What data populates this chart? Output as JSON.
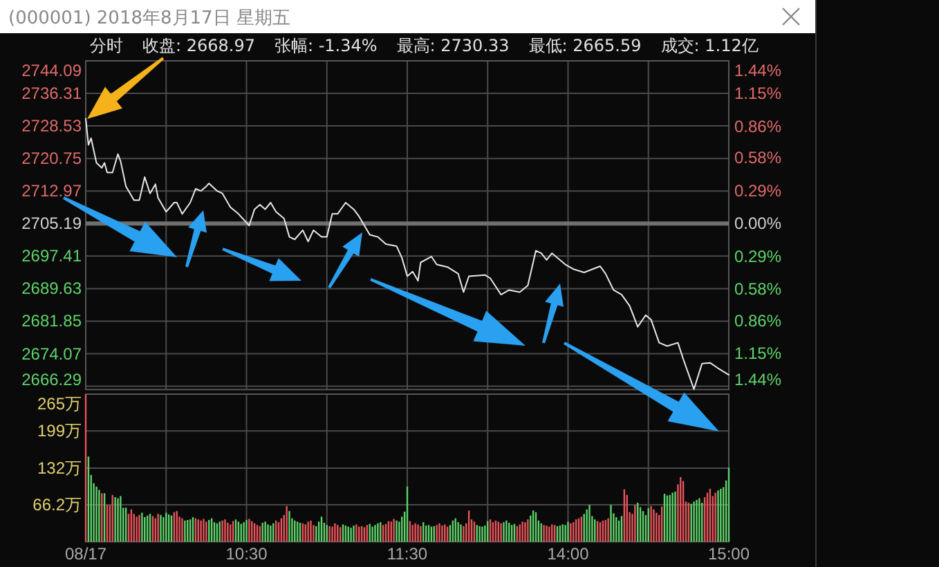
{
  "chart_data": [
    {
      "type": "line",
      "title": "(000001) 2018年8月17日 星期五",
      "annotations": [
        "分时",
        "收盘: 2668.97",
        "张幅: -1.34%",
        "最高: 2730.33",
        "最低: 2665.59",
        "成交: 1.12亿"
      ],
      "series": [
        {
          "color": "#e8e8e8",
          "values": [
            2730.3,
            2724.0,
            2725.6,
            null,
            2719.7,
            null,
            2718.5,
            2719.7,
            2717.4,
            null,
            2717.4,
            null,
            2721.8,
            2720.1,
            null,
            2714.1,
            null,
            null,
            2710.8,
            null,
            2710.8,
            null,
            2716.3,
            null,
            2712.4,
            null,
            2714.6,
            2711.3,
            null,
            null,
            2708.0,
            null,
            null,
            2710.2,
            2710.2,
            null,
            2707.5,
            null,
            null,
            2710.2,
            null,
            2713.5,
            null,
            2713.0,
            null,
            2714.1,
            2714.8,
            null,
            null,
            2713.0,
            null,
            2712.4,
            null,
            null,
            2709.1,
            null,
            null,
            2707.5,
            null,
            null,
            null,
            2704.7,
            null,
            2708.6,
            null,
            2709.7,
            null,
            2708.6,
            null,
            2710.2,
            null,
            2708.0,
            null,
            null,
            2706.4,
            null,
            2702.0,
            null,
            2701.4,
            null,
            null,
            2703.6,
            null,
            2700.9,
            null,
            2703.6,
            null,
            null,
            2702.0,
            null,
            2702.0,
            null,
            2707.5,
            null,
            2707.5,
            null,
            null,
            2710.2,
            null,
            null,
            2708.6,
            null,
            2706.9,
            null,
            null,
            null,
            2702.5,
            null,
            null,
            2702.0,
            null,
            null,
            2700.3,
            null,
            null,
            null,
            2699.8,
            null,
            2697.0,
            null,
            2692.6,
            null,
            2693.7,
            null,
            2691.5,
            2695.9,
            null,
            null,
            null,
            2697.3,
            null,
            2695.4,
            null,
            null,
            null,
            2694.8,
            null,
            null,
            null,
            2693.2,
            null,
            2688.8,
            null,
            2692.6,
            null,
            null,
            null,
            null,
            null,
            2692.9,
            null,
            2692.1,
            null,
            null,
            null,
            2688.2,
            null,
            null,
            2689.3,
            null,
            null,
            null,
            2688.8,
            null,
            null,
            2690.4,
            null,
            null,
            2698.7,
            null,
            2698.1,
            null,
            2696.5,
            null,
            2698.1,
            null,
            null,
            null,
            null,
            2695.4,
            null,
            null,
            2694.3,
            null,
            null,
            null,
            2693.5,
            null,
            null,
            null,
            null,
            null,
            2695.0,
            null,
            2693.2,
            null,
            null,
            2689.3,
            null,
            null,
            2688.2,
            null,
            null,
            2685.5,
            null,
            null,
            2680.5,
            null,
            null,
            2683.3,
            null,
            2682.2,
            null,
            null,
            2676.7,
            null,
            null,
            2675.9,
            null,
            null,
            null,
            2676.7,
            null,
            2672.8,
            null,
            null,
            null,
            2665.6,
            null,
            null,
            2671.7,
            null,
            null,
            2671.9,
            null,
            null,
            2670.6,
            null,
            null,
            null,
            2669.0
          ]
        }
      ],
      "categories": [
        null,
        null,
        null,
        null,
        null,
        null,
        null,
        null,
        null,
        null,
        null,
        null,
        null,
        null,
        null,
        null,
        null,
        null,
        null,
        null,
        null,
        null,
        null,
        null,
        null,
        null,
        null,
        null,
        null,
        null,
        null,
        null,
        null,
        null,
        null,
        null,
        null,
        null,
        null,
        null,
        null,
        null,
        null,
        null,
        null,
        null,
        null,
        null,
        null,
        null,
        null,
        null,
        null,
        null,
        null,
        null,
        null,
        null,
        null,
        null,
        null,
        null,
        null,
        null,
        null,
        null,
        null,
        null,
        null,
        null,
        null,
        null,
        null,
        null,
        null,
        null,
        null,
        null,
        null,
        null,
        null,
        null,
        null,
        null,
        null,
        null,
        null,
        null,
        null,
        null,
        null,
        null,
        null,
        null,
        null,
        null,
        null,
        null,
        null,
        null,
        null,
        null,
        null,
        null,
        null,
        null,
        null,
        null,
        null,
        null,
        null,
        null,
        null,
        null,
        null,
        null,
        null,
        null,
        null,
        null,
        null,
        null,
        null,
        null,
        null,
        null,
        null,
        null,
        null,
        null,
        null,
        null,
        null,
        null,
        null,
        null,
        null,
        null,
        null,
        null,
        null,
        null,
        null,
        null,
        null,
        null,
        null,
        null,
        null,
        null,
        null,
        null,
        null,
        null,
        null,
        null,
        null,
        null,
        null,
        null,
        null,
        null,
        null,
        null,
        null,
        null,
        null,
        null,
        null,
        null,
        null,
        null,
        null,
        null,
        null,
        null,
        null,
        null,
        null,
        null,
        null,
        null,
        null,
        null,
        null,
        null,
        null,
        null,
        null,
        null,
        null,
        null,
        null,
        null,
        null,
        null,
        null,
        null,
        null,
        null,
        null,
        null,
        null,
        null,
        null,
        null,
        null,
        null,
        null,
        null,
        null,
        null,
        null,
        null,
        null,
        null,
        null,
        null,
        null,
        null,
        null,
        null,
        null,
        null,
        null,
        null,
        null,
        null,
        null,
        null,
        null,
        null,
        null,
        null,
        null,
        null,
        null,
        null,
        null,
        null,
        null
      ],
      "ylim": [
        2665.5,
        2744.09
      ],
      "yticks": [
        2744.09,
        2736.31,
        2728.53,
        2720.75,
        2712.97,
        2705.19,
        2697.41,
        2689.63,
        2681.85,
        2674.07,
        2666.29
      ],
      "y2lim": [
        -1.47,
        1.44
      ],
      "y2ticks": [
        {
          "value": 1.44,
          "label": "1.44%"
        },
        {
          "value": 1.15,
          "label": "1.15%"
        },
        {
          "value": 0.86,
          "label": "0.86%"
        },
        {
          "value": 0.58,
          "label": "0.58%"
        },
        {
          "value": 0.29,
          "label": "0.29%"
        },
        {
          "value": 0,
          "label": "0.00%"
        },
        {
          "value": -0.29,
          "label": "0.29%"
        },
        {
          "value": -0.58,
          "label": "0.58%"
        },
        {
          "value": -0.86,
          "label": "0.86%"
        },
        {
          "value": -1.15,
          "label": "1.15%"
        },
        {
          "value": -1.44,
          "label": "1.44%"
        }
      ],
      "ref_lines": [
        {
          "axis": "y",
          "value": 2705.19,
          "color": "#707070"
        }
      ],
      "grid": true,
      "tick_labels": "y"
    },
    {
      "type": "bar",
      "categories": [
        "08/17",
        null,
        null,
        null,
        null,
        null,
        null,
        null,
        null,
        null,
        null,
        null,
        null,
        null,
        null,
        null,
        null,
        null,
        null,
        null,
        null,
        null,
        null,
        null,
        null,
        null,
        null,
        null,
        null,
        null,
        null,
        null,
        null,
        null,
        null,
        null,
        null,
        null,
        null,
        null,
        null,
        null,
        null,
        null,
        null,
        null,
        null,
        null,
        null,
        null,
        null,
        null,
        null,
        null,
        null,
        null,
        null,
        null,
        null,
        null,
        "10:30",
        null,
        null,
        null,
        null,
        null,
        null,
        null,
        null,
        null,
        null,
        null,
        null,
        null,
        null,
        null,
        null,
        null,
        null,
        null,
        null,
        null,
        null,
        null,
        null,
        null,
        null,
        null,
        null,
        null,
        null,
        null,
        null,
        null,
        null,
        null,
        null,
        null,
        null,
        null,
        null,
        null,
        null,
        null,
        null,
        null,
        null,
        null,
        null,
        null,
        null,
        null,
        null,
        null,
        null,
        null,
        null,
        null,
        null,
        null,
        "11:30",
        null,
        null,
        null,
        null,
        null,
        null,
        null,
        null,
        null,
        null,
        null,
        null,
        null,
        null,
        null,
        null,
        null,
        null,
        null,
        null,
        null,
        null,
        null,
        null,
        null,
        null,
        null,
        null,
        null,
        null,
        null,
        null,
        null,
        null,
        null,
        null,
        null,
        null,
        null,
        null,
        null,
        null,
        null,
        null,
        null,
        null,
        null,
        null,
        null,
        null,
        null,
        null,
        null,
        null,
        null,
        null,
        null,
        null,
        null,
        "14:00",
        null,
        null,
        null,
        null,
        null,
        null,
        null,
        null,
        null,
        null,
        null,
        null,
        null,
        null,
        null,
        null,
        null,
        null,
        null,
        null,
        null,
        null,
        null,
        null,
        null,
        null,
        null,
        null,
        null,
        null,
        null,
        null,
        null,
        null,
        null,
        null,
        null,
        null,
        null,
        null,
        null,
        null,
        null,
        null,
        null,
        null,
        null,
        null,
        null,
        null,
        null,
        null,
        null,
        null,
        null,
        null,
        null,
        null,
        null,
        "15:00"
      ],
      "values": [
        265,
        153,
        120,
        105,
        99,
        93,
        87,
        87,
        66,
        66,
        84,
        80,
        78,
        82,
        61,
        61,
        50,
        58,
        50,
        45,
        48,
        52,
        44,
        47,
        50,
        46,
        42,
        50,
        48,
        44,
        52,
        49,
        47,
        53,
        55,
        45,
        42,
        38,
        39,
        40,
        44,
        42,
        40,
        38,
        41,
        36,
        39,
        42,
        35,
        33,
        36,
        38,
        40,
        34,
        31,
        37,
        40,
        36,
        32,
        35,
        39,
        41,
        37,
        33,
        30,
        28,
        34,
        36,
        31,
        29,
        33,
        38,
        35,
        42,
        48,
        64,
        55,
        42,
        38,
        36,
        34,
        33,
        31,
        36,
        38,
        30,
        28,
        36,
        45,
        34,
        30,
        28,
        27,
        33,
        30,
        26,
        31,
        29,
        27,
        25,
        29,
        31,
        27,
        28,
        26,
        30,
        32,
        27,
        30,
        33,
        35,
        30,
        32,
        37,
        36,
        41,
        38,
        36,
        45,
        54,
        99,
        37,
        30,
        33,
        31,
        28,
        35,
        29,
        30,
        27,
        28,
        30,
        33,
        29,
        31,
        27,
        30,
        38,
        42,
        35,
        31,
        28,
        33,
        56,
        40,
        36,
        30,
        28,
        27,
        29,
        37,
        40,
        35,
        38,
        36,
        33,
        35,
        38,
        34,
        30,
        32,
        28,
        31,
        36,
        35,
        40,
        47,
        56,
        53,
        38,
        33,
        30,
        29,
        27,
        31,
        30,
        28,
        29,
        31,
        30,
        36,
        33,
        35,
        40,
        42,
        45,
        50,
        58,
        66,
        46,
        40,
        37,
        35,
        38,
        39,
        42,
        66,
        51,
        44,
        38,
        46,
        94,
        84,
        53,
        50,
        66,
        70,
        62,
        55,
        48,
        60,
        64,
        58,
        52,
        48,
        63,
        86,
        83,
        84,
        88,
        90,
        103,
        116,
        109,
        72,
        70,
        68,
        72,
        75,
        78,
        70,
        80,
        88,
        95,
        82,
        88,
        92,
        95,
        98,
        110,
        133
      ],
      "colors": [
        "#e8545a",
        "#5ed36a",
        "#5ed36a",
        "#5ed36a",
        "#5ed36a",
        "#5ed36a",
        "#e8545a",
        "#5ed36a",
        "#e8545a",
        "#e8545a",
        "#e8545a",
        "#5ed36a",
        "#5ed36a",
        "#5ed36a",
        "#5ed36a",
        "#5ed36a",
        "#e8545a",
        "#e8545a",
        "#e8545a",
        "#e8545a",
        "#e8545a",
        "#5ed36a",
        "#5ed36a",
        "#5ed36a",
        "#5ed36a",
        "#e8545a",
        "#e8545a",
        "#e8545a",
        "#5ed36a",
        "#5ed36a",
        "#5ed36a",
        "#5ed36a",
        "#5ed36a",
        "#e8545a",
        "#e8545a",
        "#e8545a",
        "#e8545a",
        "#5ed36a",
        "#5ed36a",
        "#5ed36a",
        "#5ed36a",
        "#e8545a",
        "#e8545a",
        "#e8545a",
        "#e8545a",
        "#e8545a",
        "#5ed36a",
        "#5ed36a",
        "#5ed36a",
        "#5ed36a",
        "#5ed36a",
        "#e8545a",
        "#e8545a",
        "#e8545a",
        "#e8545a",
        "#e8545a",
        "#5ed36a",
        "#5ed36a",
        "#5ed36a",
        "#5ed36a",
        "#5ed36a",
        "#e8545a",
        "#e8545a",
        "#e8545a",
        "#e8545a",
        "#e8545a",
        "#5ed36a",
        "#5ed36a",
        "#5ed36a",
        "#5ed36a",
        "#5ed36a",
        "#e8545a",
        "#e8545a",
        "#e8545a",
        "#e8545a",
        "#e8545a",
        "#5ed36a",
        "#5ed36a",
        "#5ed36a",
        "#5ed36a",
        "#5ed36a",
        "#e8545a",
        "#e8545a",
        "#e8545a",
        "#e8545a",
        "#e8545a",
        "#5ed36a",
        "#5ed36a",
        "#5ed36a",
        "#5ed36a",
        "#5ed36a",
        "#e8545a",
        "#e8545a",
        "#e8545a",
        "#e8545a",
        "#e8545a",
        "#5ed36a",
        "#5ed36a",
        "#5ed36a",
        "#5ed36a",
        "#5ed36a",
        "#e8545a",
        "#e8545a",
        "#e8545a",
        "#e8545a",
        "#e8545a",
        "#5ed36a",
        "#5ed36a",
        "#5ed36a",
        "#5ed36a",
        "#5ed36a",
        "#e8545a",
        "#e8545a",
        "#e8545a",
        "#e8545a",
        "#e8545a",
        "#5ed36a",
        "#5ed36a",
        "#5ed36a",
        "#5ed36a",
        "#5ed36a",
        "#e8545a",
        "#e8545a",
        "#e8545a",
        "#e8545a",
        "#e8545a",
        "#5ed36a",
        "#5ed36a",
        "#5ed36a",
        "#5ed36a",
        "#5ed36a",
        "#e8545a",
        "#e8545a",
        "#e8545a",
        "#e8545a",
        "#e8545a",
        "#5ed36a",
        "#5ed36a",
        "#5ed36a",
        "#5ed36a",
        "#5ed36a",
        "#e8545a",
        "#e8545a",
        "#e8545a",
        "#e8545a",
        "#e8545a",
        "#5ed36a",
        "#5ed36a",
        "#5ed36a",
        "#5ed36a",
        "#5ed36a",
        "#e8545a",
        "#e8545a",
        "#e8545a",
        "#e8545a",
        "#e8545a",
        "#5ed36a",
        "#5ed36a",
        "#5ed36a",
        "#5ed36a",
        "#5ed36a",
        "#e8545a",
        "#e8545a",
        "#e8545a",
        "#e8545a",
        "#e8545a",
        "#5ed36a",
        "#5ed36a",
        "#5ed36a",
        "#5ed36a",
        "#5ed36a",
        "#e8545a",
        "#e8545a",
        "#e8545a",
        "#e8545a",
        "#e8545a",
        "#5ed36a",
        "#5ed36a",
        "#5ed36a",
        "#5ed36a",
        "#5ed36a",
        "#e8545a",
        "#e8545a",
        "#e8545a",
        "#e8545a",
        "#e8545a",
        "#5ed36a",
        "#5ed36a",
        "#5ed36a",
        "#5ed36a",
        "#5ed36a",
        "#e8545a",
        "#e8545a",
        "#e8545a",
        "#e8545a",
        "#e8545a",
        "#5ed36a",
        "#5ed36a",
        "#5ed36a",
        "#5ed36a",
        "#5ed36a",
        "#e8545a",
        "#e8545a",
        "#e8545a",
        "#e8545a",
        "#e8545a",
        "#5ed36a",
        "#5ed36a",
        "#5ed36a",
        "#5ed36a",
        "#5ed36a",
        "#e8545a",
        "#e8545a",
        "#e8545a",
        "#e8545a",
        "#e8545a",
        "#5ed36a",
        "#5ed36a",
        "#5ed36a",
        "#5ed36a",
        "#5ed36a",
        "#e8545a",
        "#e8545a",
        "#e8545a",
        "#e8545a",
        "#e8545a",
        "#5ed36a",
        "#5ed36a",
        "#5ed36a",
        "#5ed36a",
        "#5ed36a",
        "#e8545a",
        "#e8545a",
        "#e8545a",
        "#e8545a",
        "#e8545a",
        "#5ed36a",
        "#5ed36a",
        "#5ed36a",
        "#5ed36a",
        "#5ed36a"
      ],
      "ylim": [
        0,
        265
      ],
      "yticks": [
        {
          "value": 265,
          "label": "265万"
        },
        {
          "value": 199,
          "label": "199万"
        },
        {
          "value": 132,
          "label": "132万"
        },
        {
          "value": 66.2,
          "label": "66.2万"
        }
      ],
      "grid": true
    }
  ]
}
